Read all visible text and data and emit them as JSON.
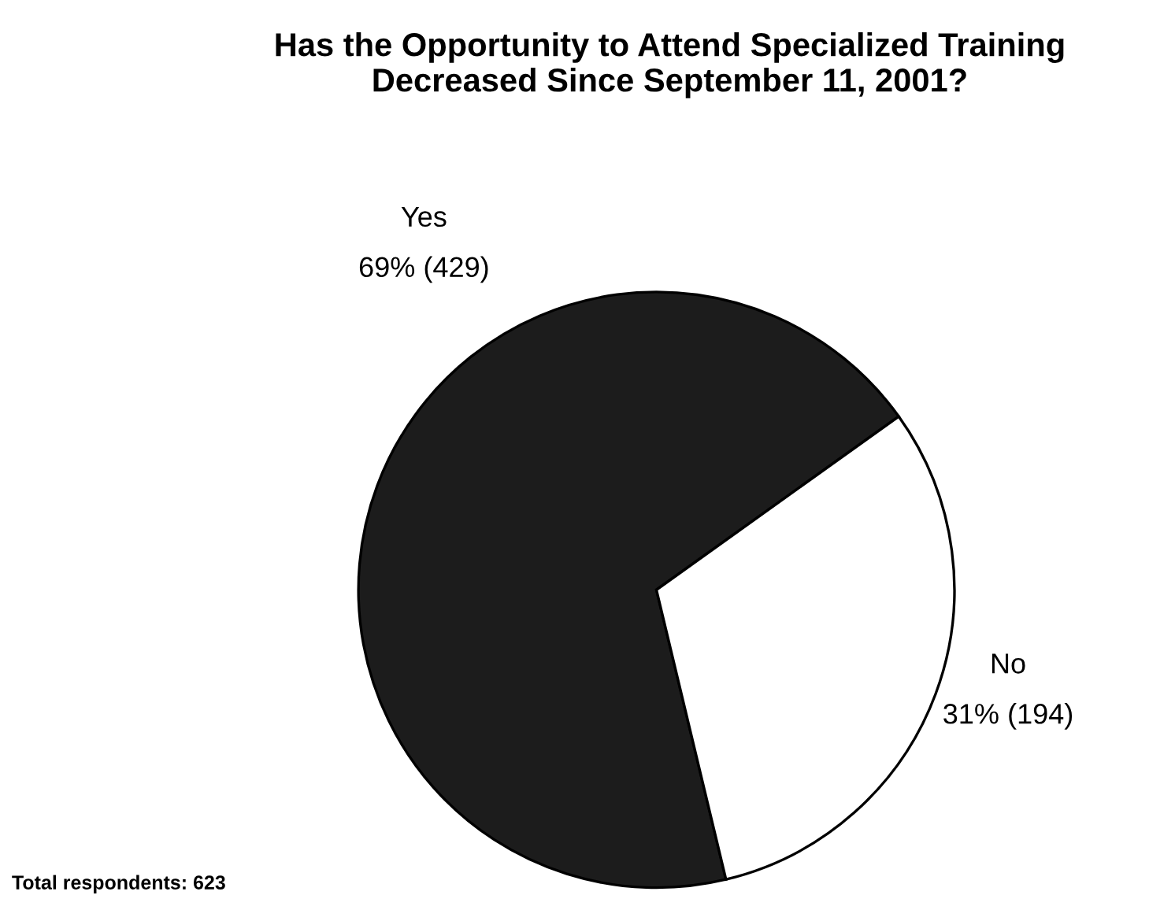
{
  "chart_data": {
    "type": "pie",
    "title": "Has the Opportunity to Attend Specialized Training\nDecreased Since September 11, 2001?",
    "categories": [
      "Yes",
      "No"
    ],
    "values": [
      429,
      194
    ],
    "value_labels": [
      "69% (429)",
      "31% (194)"
    ],
    "colors": [
      "#1c1c1c",
      "#ffffff"
    ],
    "annotations": [
      "Total respondents: 623"
    ]
  }
}
